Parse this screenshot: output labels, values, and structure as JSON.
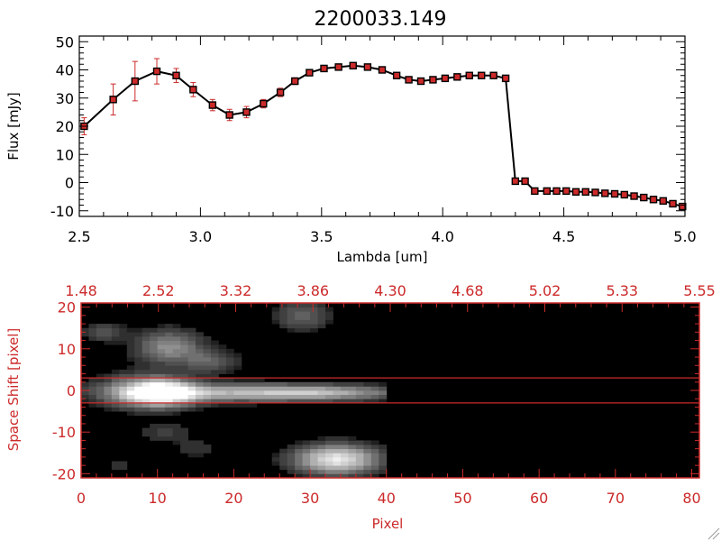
{
  "chart_data": [
    {
      "type": "line",
      "title": "2200033.149",
      "xlabel": "Lambda [um]",
      "ylabel": "Flux [mJy]",
      "xlim": [
        2.5,
        5.0
      ],
      "ylim": [
        -12,
        52
      ],
      "x_ticks": [
        "2.5",
        "3.0",
        "3.5",
        "4.0",
        "4.5",
        "5.0"
      ],
      "y_ticks": [
        "-10",
        "0",
        "10",
        "20",
        "30",
        "40",
        "50"
      ],
      "grid": false,
      "colors": {
        "line": "#000000",
        "marker": "#cc2a2a",
        "errorbar": "#cc2a2a"
      },
      "series": [
        {
          "x": [
            2.52,
            2.64,
            2.73,
            2.82,
            2.9,
            2.97,
            3.05,
            3.12,
            3.19,
            3.26,
            3.33,
            3.39,
            3.45,
            3.51,
            3.57,
            3.63,
            3.69,
            3.75,
            3.81,
            3.86,
            3.91,
            3.96,
            4.01,
            4.06,
            4.11,
            4.16,
            4.21,
            4.26,
            4.3,
            4.34,
            4.38,
            4.43,
            4.47,
            4.51,
            4.55,
            4.59,
            4.63,
            4.67,
            4.71,
            4.75,
            4.79,
            4.83,
            4.87,
            4.91,
            4.95,
            4.99
          ],
          "y": [
            20,
            29.5,
            36,
            39.5,
            38,
            33,
            27.5,
            24,
            25,
            28,
            32,
            36,
            39,
            40.5,
            41,
            41.5,
            41,
            40,
            38,
            36.5,
            36,
            36.5,
            37,
            37.5,
            38,
            38,
            38,
            37,
            0.5,
            0.5,
            -3,
            -3,
            -3,
            -3,
            -3.3,
            -3.3,
            -3.5,
            -3.8,
            -4,
            -4.3,
            -4.8,
            -5.3,
            -6,
            -6.5,
            -7.5,
            -8.5
          ],
          "yerr": [
            3,
            5.5,
            7,
            4.5,
            2.5,
            2.5,
            2,
            2,
            2,
            1.5,
            1.5,
            1.2,
            1,
            1,
            1,
            1,
            1,
            1,
            1,
            0.8,
            0.8,
            0.8,
            0.8,
            0.8,
            0.8,
            0.8,
            0.8,
            0.8,
            0.5,
            0.5,
            0.5,
            0.5,
            0.5,
            0.5,
            0.5,
            0.5,
            0.5,
            0.5,
            0.5,
            0.5,
            0.5,
            0.5,
            0.5,
            0.5,
            0.6,
            0.8
          ]
        }
      ]
    },
    {
      "type": "heatmap",
      "xlabel": "Pixel",
      "ylabel": "Space Shift [pixel]",
      "xlim": [
        0,
        81
      ],
      "ylim": [
        -21,
        21
      ],
      "x_ticks": [
        "0",
        "10",
        "20",
        "30",
        "40",
        "50",
        "60",
        "70",
        "80"
      ],
      "y_ticks": [
        "-20",
        "-10",
        "0",
        "10",
        "20"
      ],
      "top_ticks": [
        "1.48",
        "2.52",
        "3.32",
        "3.86",
        "4.30",
        "4.68",
        "5.02",
        "5.33",
        "5.55"
      ],
      "colormap": "grayscale",
      "colors": {
        "axis": "#cc2a2a",
        "background": "#000000"
      },
      "extraction_lines_y": [
        3,
        -3
      ],
      "signal_x_range": [
        0,
        40
      ],
      "blobs": [
        {
          "x": 10.5,
          "y": -0.5,
          "sx": 3.2,
          "sy": 2.2,
          "amp": 1.0
        },
        {
          "x": 20,
          "y": -0.5,
          "sx": 10,
          "sy": 1.5,
          "amp": 0.55
        },
        {
          "x": 32,
          "y": -0.5,
          "sx": 7,
          "sy": 1.2,
          "amp": 0.45
        },
        {
          "x": 33.5,
          "y": -16.5,
          "sx": 3.8,
          "sy": 2.4,
          "amp": 0.9
        },
        {
          "x": 11.5,
          "y": 10.5,
          "sx": 3,
          "sy": 2.8,
          "amp": 0.48
        },
        {
          "x": 17,
          "y": 7,
          "sx": 2.5,
          "sy": 2,
          "amp": 0.28
        },
        {
          "x": 3,
          "y": 14,
          "sx": 2,
          "sy": 1.6,
          "amp": 0.25
        },
        {
          "x": 29,
          "y": 18,
          "sx": 2.5,
          "sy": 2.5,
          "amp": 0.3
        },
        {
          "x": 7,
          "y": 0,
          "sx": 4,
          "sy": 3,
          "amp": 0.3
        },
        {
          "x": 11,
          "y": -10,
          "sx": 2.5,
          "sy": 1.6,
          "amp": 0.18
        },
        {
          "x": 15,
          "y": -14,
          "sx": 2,
          "sy": 1.5,
          "amp": 0.15
        },
        {
          "x": 5,
          "y": -18,
          "sx": 1.5,
          "sy": 1.5,
          "amp": 0.12
        }
      ]
    }
  ]
}
